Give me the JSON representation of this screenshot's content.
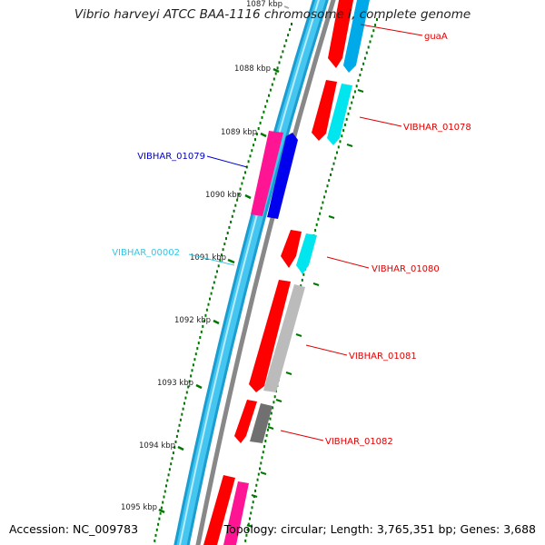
{
  "title": "Vibrio harveyi ATCC BAA-1116 chromosome I, complete genome",
  "footer": {
    "accession": "Accession: NC_009783",
    "topology": "Topology: circular; Length: 3,765,351 bp; Genes: 3,688"
  },
  "ticks": [
    "1087 kbp",
    "1088 kbp",
    "1089 kbp",
    "1090 kbp",
    "1091 kbp",
    "1092 kbp",
    "1093 kbp",
    "1094 kbp",
    "1095 kbp"
  ],
  "gene_labels": [
    {
      "id": "guaA",
      "text": "guaA",
      "color": "#e00000"
    },
    {
      "id": "VIBHAR_01078",
      "text": "VIBHAR_01078",
      "color": "#e00000"
    },
    {
      "id": "VIBHAR_01079",
      "text": "VIBHAR_01079",
      "color": "#0000cc"
    },
    {
      "id": "VIBHAR_00002",
      "text": "VIBHAR_00002",
      "color": "#33c6e6"
    },
    {
      "id": "VIBHAR_01080",
      "text": "VIBHAR_01080",
      "color": "#e00000"
    },
    {
      "id": "VIBHAR_01081",
      "text": "VIBHAR_01081",
      "color": "#e00000"
    },
    {
      "id": "VIBHAR_01082",
      "text": "VIBHAR_01082",
      "color": "#e00000"
    }
  ],
  "colors": {
    "backbone_light": "#45c6f0",
    "backbone_dark": "#1a9dd0",
    "gc_line": "#888888",
    "cds": "#ff0000",
    "cyan_feature": "#00e5ee",
    "blue_feature": "#0000ee",
    "magenta_feature": "#ff1493",
    "gray_feature": "#bbbbbb",
    "dark_gray_feature": "#707070",
    "tick_green": "#007700",
    "line_red": "#e00000",
    "line_blue": "#0000cc",
    "line_cyan": "#33c6e6"
  }
}
